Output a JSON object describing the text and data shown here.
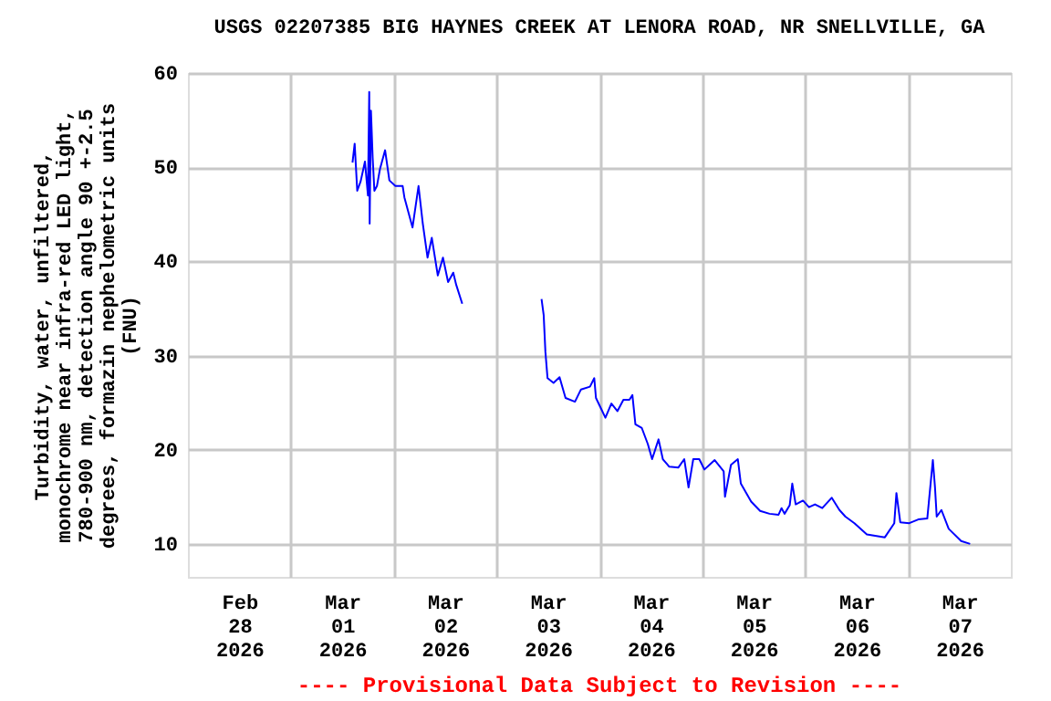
{
  "chart_data": {
    "type": "line",
    "title": "USGS 02207385 BIG HAYNES CREEK AT LENORA ROAD, NR SNELLVILLE, GA",
    "ylabel": "Turbidity, water, unfiltered,\nmonochrome near infra-red LED light,\n780-900 nm, detection angle 90 +-2.5\ndegrees, formazin nephelometric units\n(FNU)",
    "annotations": [
      "---- Provisional Data Subject to Revision ----"
    ],
    "x": [
      "2026-03-01T14:24",
      "2026-03-01T14:54",
      "2026-03-01T15:30",
      "2026-03-01T16:18",
      "2026-03-01T17:18",
      "2026-03-01T18:00",
      "2026-03-01T18:18",
      "2026-03-01T18:24",
      "2026-03-01T18:42",
      "2026-03-01T19:06",
      "2026-03-01T19:30",
      "2026-03-01T20:06",
      "2026-03-01T20:48",
      "2026-03-01T22:00",
      "2026-03-01T23:00",
      "2026-03-02T00:24",
      "2026-03-02T02:06",
      "2026-03-02T02:30",
      "2026-03-02T04:24",
      "2026-03-02T05:48",
      "2026-03-02T06:48",
      "2026-03-02T07:54",
      "2026-03-02T08:54",
      "2026-03-02T10:18",
      "2026-03-02T11:30",
      "2026-03-02T12:42",
      "2026-03-02T13:54",
      "2026-03-02T14:36",
      "2026-03-02T16:00",
      "2026-03-03T00:00",
      "2026-03-03T10:30",
      "2026-03-03T11:00",
      "2026-03-03T11:24",
      "2026-03-03T11:54",
      "2026-03-03T13:18",
      "2026-03-03T14:42",
      "2026-03-03T16:06",
      "2026-03-03T18:18",
      "2026-03-03T19:42",
      "2026-03-03T21:48",
      "2026-03-03T22:48",
      "2026-03-03T23:12",
      "2026-03-04T01:24",
      "2026-03-04T02:48",
      "2026-03-04T04:12",
      "2026-03-04T05:36",
      "2026-03-04T07:00",
      "2026-03-04T07:42",
      "2026-03-04T08:24",
      "2026-03-04T09:54",
      "2026-03-04T11:18",
      "2026-03-04T12:18",
      "2026-03-04T13:48",
      "2026-03-04T14:48",
      "2026-03-04T16:18",
      "2026-03-04T18:24",
      "2026-03-04T19:48",
      "2026-03-04T20:48",
      "2026-03-04T21:54",
      "2026-03-04T23:18",
      "2026-03-05T00:30",
      "2026-03-05T02:54",
      "2026-03-05T05:00",
      "2026-03-05T05:18",
      "2026-03-05T06:42",
      "2026-03-05T08:18",
      "2026-03-05T09:00",
      "2026-03-05T11:24",
      "2026-03-05T13:30",
      "2026-03-05T15:42",
      "2026-03-05T17:48",
      "2026-03-05T18:30",
      "2026-03-05T19:12",
      "2026-03-05T20:24",
      "2026-03-05T21:00",
      "2026-03-05T21:48",
      "2026-03-05T23:30",
      "2026-03-06T00:54",
      "2026-03-06T02:18",
      "2026-03-06T04:00",
      "2026-03-06T06:12",
      "2026-03-06T08:00",
      "2026-03-06T09:24",
      "2026-03-06T11:30",
      "2026-03-06T14:24",
      "2026-03-06T18:36",
      "2026-03-06T20:48",
      "2026-03-06T21:18",
      "2026-03-06T22:12",
      "2026-03-07T00:18",
      "2026-03-07T02:24",
      "2026-03-07T04:30",
      "2026-03-07T05:48",
      "2026-03-07T06:18",
      "2026-03-07T06:42",
      "2026-03-07T07:48",
      "2026-03-07T09:30",
      "2026-03-07T12:24",
      "2026-03-07T14:30"
    ],
    "series": [
      {
        "color": "#0000ff",
        "values": [
          50.5,
          52.5,
          47.5,
          48.5,
          50.6,
          47,
          58.0,
          44,
          56,
          51,
          47.5,
          48,
          49.8,
          51.8,
          48.6,
          48,
          48,
          46.8,
          43.6,
          48,
          44,
          40.4,
          42.5,
          38.5,
          40.4,
          37.8,
          38.8,
          37.5,
          35.5,
          null,
          36.0,
          34.3,
          30.4,
          27.6,
          27.1,
          27.7,
          25.5,
          25.1,
          26.4,
          26.7,
          27.6,
          25.5,
          23.4,
          24.9,
          24.1,
          25.3,
          25.3,
          25.8,
          22.7,
          22.3,
          20.6,
          19.0,
          21.1,
          19.0,
          18.2,
          18.1,
          19.0,
          16.0,
          19.0,
          19.0,
          17.9,
          18.9,
          17.7,
          15.0,
          18.4,
          19.0,
          16.4,
          14.5,
          13.5,
          13.2,
          13.1,
          13.8,
          13.2,
          14.1,
          16.4,
          14.2,
          14.6,
          13.9,
          14.2,
          13.8,
          14.9,
          13.6,
          12.9,
          12.2,
          11.0,
          10.7,
          12.2,
          15.4,
          12.3,
          12.2,
          12.6,
          12.7,
          18.9,
          16.0,
          12.9,
          13.6,
          11.6,
          10.3,
          10.0
        ]
      }
    ],
    "xlim": [
      "2026-02-28T00:00",
      "2026-03-08T00:00"
    ],
    "xticks": [
      {
        "value": "2026-02-28T12:00",
        "label": "Feb\n28\n2026"
      },
      {
        "value": "2026-03-01T12:00",
        "label": "Mar\n01\n2026"
      },
      {
        "value": "2026-03-02T12:00",
        "label": "Mar\n02\n2026"
      },
      {
        "value": "2026-03-03T12:00",
        "label": "Mar\n03\n2026"
      },
      {
        "value": "2026-03-04T12:00",
        "label": "Mar\n04\n2026"
      },
      {
        "value": "2026-03-05T12:00",
        "label": "Mar\n05\n2026"
      },
      {
        "value": "2026-03-06T12:00",
        "label": "Mar\n06\n2026"
      },
      {
        "value": "2026-03-07T12:00",
        "label": "Mar\n07\n2026"
      },
      {
        "value": "2026-03-01T00:00",
        "label": null
      },
      {
        "value": "2026-03-02T00:00",
        "label": null
      },
      {
        "value": "2026-03-03T00:00",
        "label": null
      },
      {
        "value": "2026-03-04T00:00",
        "label": null
      },
      {
        "value": "2026-03-05T00:00",
        "label": null
      },
      {
        "value": "2026-03-06T00:00",
        "label": null
      },
      {
        "value": "2026-03-07T00:00",
        "label": null
      }
    ],
    "ylim": [
      6.5,
      60
    ],
    "yticks": [
      10,
      20,
      30,
      40,
      50,
      60
    ],
    "grid": true,
    "marker": "none",
    "line_style": "solid"
  }
}
